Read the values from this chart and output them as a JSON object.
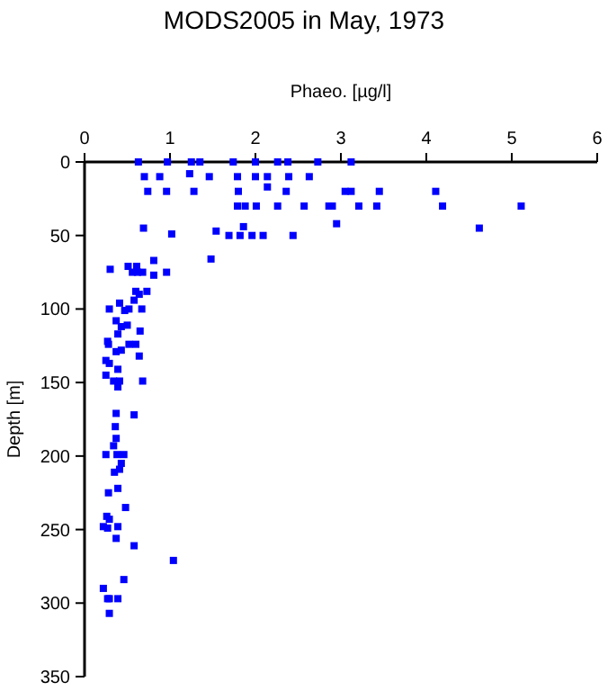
{
  "chart_data": {
    "type": "scatter",
    "title": "MODS2005 in May, 1973",
    "xlabel": "Phaeo. [µg/l]",
    "ylabel": "Depth [m]",
    "marker": "square",
    "grid": false,
    "xlim": [
      0,
      6
    ],
    "xticks": [
      0,
      1,
      2,
      3,
      4,
      5,
      6
    ],
    "ylim": [
      350,
      0
    ],
    "yticks": [
      0,
      50,
      100,
      150,
      200,
      250,
      300,
      350
    ],
    "series": [
      {
        "color": "#0000ff",
        "x": [
          0.63,
          0.97,
          1.25,
          1.35,
          1.74,
          2.0,
          2.26,
          2.38,
          2.73,
          3.12,
          0.7,
          0.88,
          1.23,
          1.46,
          1.79,
          2.0,
          2.14,
          2.39,
          2.63,
          2.14,
          0.74,
          0.96,
          1.28,
          1.8,
          2.36,
          3.05,
          3.12,
          3.45,
          4.11,
          1.79,
          1.88,
          2.01,
          2.26,
          2.57,
          2.86,
          2.9,
          3.21,
          3.42,
          4.19,
          5.11,
          0.69,
          1.02,
          1.54,
          1.69,
          1.82,
          1.86,
          1.96,
          2.09,
          2.44,
          2.95,
          4.62,
          1.48,
          0.3,
          0.51,
          0.61,
          0.56,
          0.62,
          0.68,
          0.81,
          0.81,
          0.96,
          0.6,
          0.64,
          0.58,
          0.73,
          0.29,
          0.41,
          0.47,
          0.52,
          0.67,
          0.37,
          0.43,
          0.5,
          0.39,
          0.65,
          0.27,
          0.28,
          0.52,
          0.6,
          0.43,
          0.37,
          0.64,
          0.25,
          0.29,
          0.39,
          0.25,
          0.34,
          0.41,
          0.68,
          0.39,
          0.37,
          0.58,
          0.36,
          0.37,
          0.34,
          0.25,
          0.38,
          0.46,
          0.43,
          0.41,
          0.35,
          0.39,
          0.28,
          0.48,
          0.26,
          0.29,
          0.22,
          0.27,
          0.39,
          0.37,
          0.58,
          1.04,
          0.46,
          0.22,
          0.27,
          0.29,
          0.39,
          0.29
        ],
        "values": [
          0,
          0,
          0,
          0,
          0,
          0,
          0,
          0,
          0,
          0,
          10,
          10,
          8,
          10,
          10,
          10,
          10,
          10,
          10,
          17,
          20,
          20,
          20,
          20,
          20,
          20,
          20,
          20,
          20,
          30,
          30,
          30,
          30,
          30,
          30,
          30,
          30,
          30,
          30,
          30,
          45,
          49,
          47,
          50,
          50,
          44,
          50,
          50,
          50,
          42,
          45,
          66,
          73,
          71,
          71,
          75,
          75,
          75,
          67,
          77,
          75,
          88,
          90,
          94,
          88,
          100,
          96,
          101,
          100,
          100,
          108,
          112,
          111,
          117,
          115,
          122,
          124,
          124,
          124,
          128,
          129,
          132,
          135,
          137,
          141,
          145,
          149,
          149,
          149,
          153,
          171,
          172,
          180,
          188,
          193,
          199,
          199,
          199,
          205,
          209,
          211,
          222,
          225,
          235,
          241,
          243,
          248,
          249,
          248,
          256,
          261,
          271,
          284,
          290,
          297,
          297,
          297,
          307
        ]
      }
    ]
  }
}
